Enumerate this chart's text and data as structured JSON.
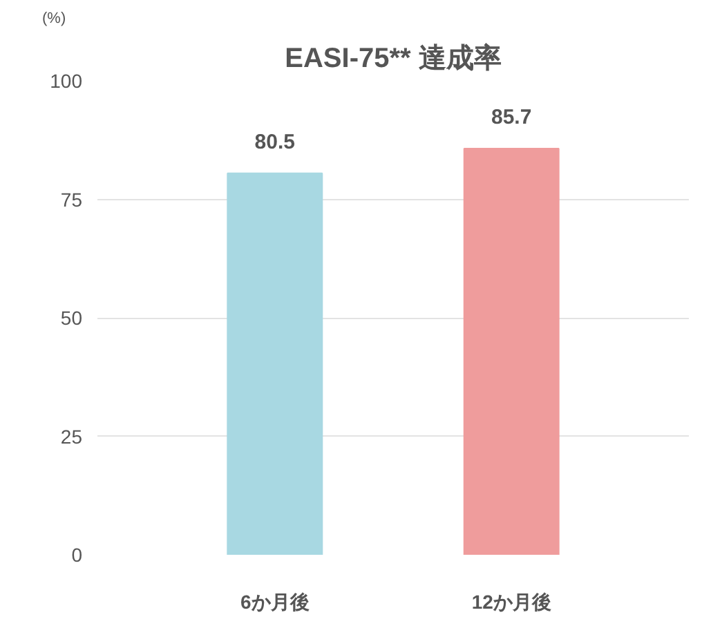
{
  "chart_data": {
    "type": "bar",
    "title": "EASI-75** 達成率",
    "ylabel": "(%)",
    "categories": [
      "6か月後",
      "12か月後"
    ],
    "values": [
      80.5,
      85.7
    ],
    "colors": [
      "#a8d8e2",
      "#ef9c9c"
    ],
    "ylim": [
      0,
      100
    ],
    "yticks": [
      0,
      25,
      50,
      75,
      100
    ],
    "grid": "y",
    "data_labels": true
  }
}
